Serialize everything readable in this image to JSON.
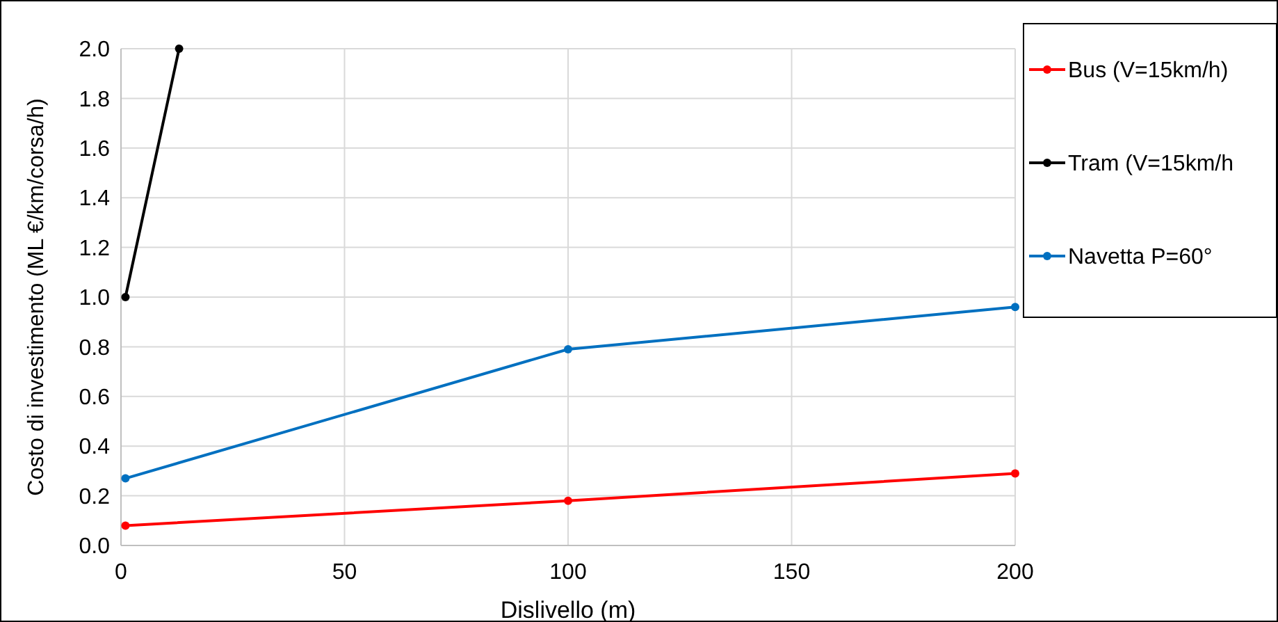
{
  "chart_data": {
    "type": "line",
    "xlabel": "Dislivello (m)",
    "ylabel": "Costo di investimento (ML €/km/corsa/h)",
    "x": [
      1,
      100,
      200
    ],
    "series": [
      {
        "name": "Bus (V=15km/h)",
        "color": "#ff0000",
        "values": [
          0.08,
          0.18,
          0.29
        ]
      },
      {
        "name": "Tram (V=15km/h",
        "color": "#000000",
        "x": [
          1,
          13
        ],
        "values": [
          1.0,
          2.0
        ]
      },
      {
        "name": "Navetta P=60°",
        "color": "#0070c0",
        "values": [
          0.27,
          0.79,
          0.96
        ]
      }
    ],
    "xlim": [
      0,
      200
    ],
    "xticks": [
      0,
      50,
      100,
      150,
      200
    ],
    "ylim": [
      0,
      2
    ],
    "yticks": [
      {
        "value": 0,
        "label": "0.0"
      },
      {
        "value": 0.2,
        "label": "0.2"
      },
      {
        "value": 0.4,
        "label": "0.4"
      },
      {
        "value": 0.6,
        "label": "0.6"
      },
      {
        "value": 0.8,
        "label": "0.8"
      },
      {
        "value": 1,
        "label": "1.0"
      },
      {
        "value": 1.2,
        "label": "1.2"
      },
      {
        "value": 1.4,
        "label": "1.4"
      },
      {
        "value": 1.6,
        "label": "1.6"
      },
      {
        "value": 1.8,
        "label": "1.8"
      },
      {
        "value": 2,
        "label": "2.0"
      }
    ],
    "grid": true,
    "legend": "right",
    "marker": "circle",
    "line_style": "solid"
  }
}
